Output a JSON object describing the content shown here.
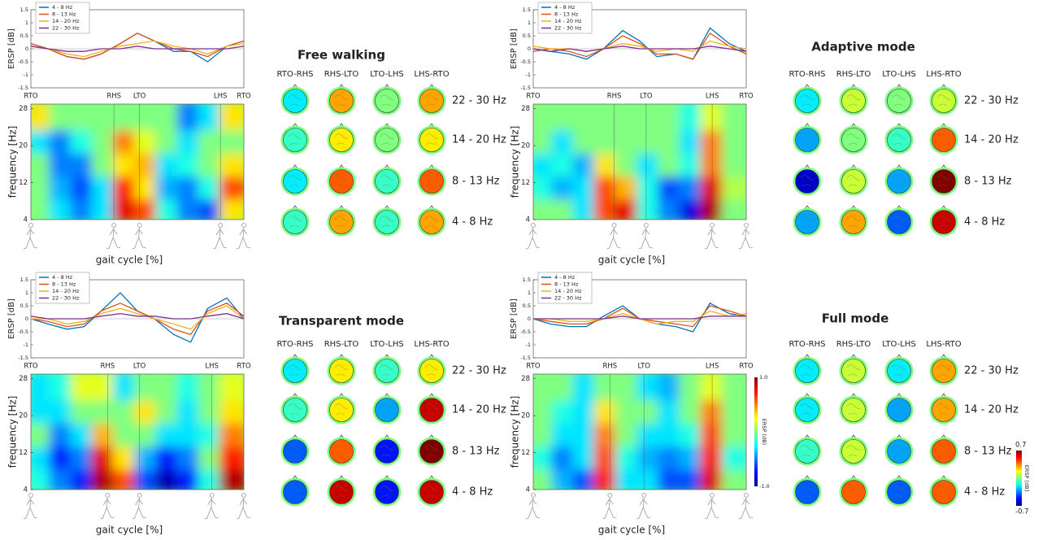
{
  "chart_data": [
    {
      "title": "Free walking",
      "line": {
        "type": "line",
        "ylabel": "ERSP [dB]",
        "xlim": [
          0,
          100
        ],
        "ylim": [
          -1.5,
          1.5
        ],
        "yticks": [
          -1.5,
          -1,
          -0.5,
          0,
          0.5,
          1,
          1.5
        ],
        "x": [
          0,
          8,
          17,
          25,
          33,
          42,
          50,
          58,
          67,
          75,
          83,
          92,
          100
        ],
        "events": [
          {
            "label": "RTO",
            "x": 0
          },
          {
            "label": "RHS",
            "x": 39
          },
          {
            "label": "LTO",
            "x": 51
          },
          {
            "label": "LHS",
            "x": 89
          },
          {
            "label": "RTO",
            "x": 100
          }
        ],
        "series": [
          {
            "name": "4 - 8 Hz",
            "color": "#0072bd",
            "values": [
              0.2,
              0,
              -0.3,
              -0.4,
              -0.2,
              0.2,
              0.6,
              0.3,
              -0.1,
              -0.1,
              -0.5,
              0.1,
              0.3
            ]
          },
          {
            "name": "8 - 13 Hz",
            "color": "#d95319",
            "values": [
              0.2,
              0,
              -0.3,
              -0.4,
              -0.2,
              0.2,
              0.6,
              0.3,
              0,
              -0.1,
              -0.3,
              0.1,
              0.3
            ]
          },
          {
            "name": "14 - 20 Hz",
            "color": "#edb120",
            "values": [
              0.1,
              0,
              -0.2,
              -0.3,
              -0.1,
              0.1,
              0.2,
              0.3,
              0.1,
              0,
              -0.2,
              0.1,
              0.2
            ]
          },
          {
            "name": "22 - 30 Hz",
            "color": "#7e2f8e",
            "values": [
              0.1,
              0,
              -0.1,
              -0.1,
              0,
              0,
              0.1,
              0,
              0,
              0,
              0,
              0,
              0.1
            ]
          }
        ]
      },
      "heatmap": {
        "type": "heatmap",
        "xlabel": "gait cycle [%]",
        "ylabel": "frequency [Hz]",
        "xlim": [
          0,
          100
        ],
        "ylim": [
          4,
          29
        ],
        "yticks": [
          4,
          12,
          20,
          28
        ],
        "clim": [
          -1,
          1
        ],
        "x": [
          5,
          15,
          25,
          35,
          45,
          55,
          65,
          75,
          85,
          95
        ],
        "y": [
          6.5,
          11.5,
          16.5,
          21.5,
          26.5
        ],
        "values": [
          [
            0,
            -0.3,
            -0.5,
            -0.3,
            0.8,
            0.6,
            -0.2,
            -0.5,
            -0.6,
            0.3
          ],
          [
            0,
            -0.4,
            -0.6,
            -0.3,
            0.7,
            0.3,
            -0.4,
            -0.5,
            -0.2,
            0.6
          ],
          [
            0,
            -0.5,
            -0.5,
            0,
            0.3,
            0.4,
            -0.3,
            -0.2,
            0,
            0.3
          ],
          [
            -0.3,
            -0.5,
            -0.2,
            0,
            0.5,
            0.2,
            0,
            -0.3,
            0,
            0
          ],
          [
            0.3,
            0,
            0,
            0,
            0,
            0,
            0,
            -0.5,
            -0.3,
            0.3
          ]
        ]
      },
      "topomap": {
        "type": "topomap",
        "clim": [
          -0.7,
          0.7
        ],
        "columns": [
          "RTO-RHS",
          "RHS-LTO",
          "LTO-LHS",
          "LHS-RTO"
        ],
        "rows": [
          "22 - 30 Hz",
          "14 - 20 Hz",
          "8 - 13 Hz",
          "4 - 8 Hz"
        ],
        "values": [
          [
            -0.2,
            0.3,
            0,
            0.3
          ],
          [
            -0.1,
            0.2,
            0,
            0.2
          ],
          [
            -0.2,
            0.4,
            -0.1,
            0.4
          ],
          [
            -0.1,
            0.3,
            -0.1,
            0.3
          ]
        ]
      }
    },
    {
      "title": "Adaptive mode",
      "line": {
        "type": "line",
        "ylabel": "ERSP [dB]",
        "xlim": [
          0,
          100
        ],
        "ylim": [
          -1.5,
          1.5
        ],
        "yticks": [
          -1.5,
          -1,
          -0.5,
          0,
          0.5,
          1,
          1.5
        ],
        "x": [
          0,
          8,
          17,
          25,
          33,
          42,
          50,
          58,
          67,
          75,
          83,
          92,
          100
        ],
        "events": [
          {
            "label": "RTO",
            "x": 0
          },
          {
            "label": "RHS",
            "x": 38
          },
          {
            "label": "LTO",
            "x": 53
          },
          {
            "label": "LHS",
            "x": 84
          },
          {
            "label": "RTO",
            "x": 100
          }
        ],
        "series": [
          {
            "name": "4 - 8 Hz",
            "color": "#0072bd",
            "values": [
              0,
              -0.1,
              -0.2,
              -0.4,
              0,
              0.7,
              0.3,
              -0.3,
              -0.2,
              -0.4,
              0.8,
              0.2,
              -0.1
            ]
          },
          {
            "name": "8 - 13 Hz",
            "color": "#d95319",
            "values": [
              -0.1,
              0,
              -0.1,
              -0.3,
              0,
              0.5,
              0.2,
              -0.2,
              -0.2,
              -0.4,
              0.6,
              0.1,
              -0.2
            ]
          },
          {
            "name": "14 - 20 Hz",
            "color": "#edb120",
            "values": [
              0.1,
              0,
              0,
              -0.1,
              0,
              0.2,
              0.1,
              -0.1,
              0,
              -0.1,
              0.3,
              0.1,
              0
            ]
          },
          {
            "name": "22 - 30 Hz",
            "color": "#7e2f8e",
            "values": [
              0,
              -0.1,
              0,
              -0.1,
              0,
              0.1,
              0,
              0,
              0,
              0,
              0.1,
              0,
              -0.1
            ]
          }
        ]
      },
      "heatmap": {
        "type": "heatmap",
        "xlabel": "gait cycle [%]",
        "ylabel": "frequency [Hz]",
        "xlim": [
          0,
          100
        ],
        "ylim": [
          4,
          29
        ],
        "yticks": [
          4,
          12,
          20,
          28
        ],
        "clim": [
          -1,
          1
        ],
        "x": [
          5,
          15,
          25,
          35,
          45,
          55,
          65,
          75,
          85,
          95
        ],
        "y": [
          6.5,
          11.5,
          16.5,
          21.5,
          26.5
        ],
        "values": [
          [
            0,
            0,
            -0.3,
            0.6,
            0.8,
            -0.2,
            -0.5,
            -0.8,
            0.9,
            0
          ],
          [
            -0.2,
            -0.4,
            -0.3,
            0.6,
            0.4,
            -0.2,
            -0.6,
            -0.5,
            0.8,
            0.1
          ],
          [
            -0.3,
            -0.2,
            -0.4,
            0.3,
            0,
            -0.3,
            0,
            -0.2,
            0.5,
            0
          ],
          [
            0,
            -0.3,
            0,
            0,
            0,
            0,
            0,
            -0.3,
            0.5,
            0
          ],
          [
            0,
            0,
            0,
            0,
            0,
            0,
            0,
            -0.2,
            0.2,
            0
          ]
        ]
      },
      "topomap": {
        "type": "topomap",
        "clim": [
          -0.7,
          0.7
        ],
        "columns": [
          "RTO-RHS",
          "RHS-LTO",
          "LTO-LHS",
          "LHS-RTO"
        ],
        "rows": [
          "22 - 30 Hz",
          "14 - 20 Hz",
          "8 - 13 Hz",
          "4 - 8 Hz"
        ],
        "values": [
          [
            -0.2,
            0.1,
            0,
            0.1
          ],
          [
            -0.3,
            0,
            -0.1,
            0.4
          ],
          [
            -0.6,
            0.1,
            -0.3,
            0.7
          ],
          [
            -0.3,
            0.3,
            -0.4,
            0.6
          ]
        ]
      }
    },
    {
      "title": "Transparent mode",
      "line": {
        "type": "line",
        "ylabel": "ERSP [dB]",
        "xlim": [
          0,
          100
        ],
        "ylim": [
          -1.5,
          1.5
        ],
        "yticks": [
          -1.5,
          -1,
          -0.5,
          0,
          0.5,
          1,
          1.5
        ],
        "x": [
          0,
          8,
          17,
          25,
          33,
          42,
          50,
          58,
          67,
          75,
          83,
          92,
          100
        ],
        "events": [
          {
            "label": "RTO",
            "x": 0
          },
          {
            "label": "RHS",
            "x": 36
          },
          {
            "label": "LTO",
            "x": 51
          },
          {
            "label": "LHS",
            "x": 85
          },
          {
            "label": "RTO",
            "x": 100
          }
        ],
        "series": [
          {
            "name": "4 - 8 Hz",
            "color": "#0072bd",
            "values": [
              0,
              -0.2,
              -0.4,
              -0.3,
              0.3,
              1,
              0.3,
              0,
              -0.6,
              -0.9,
              0.4,
              0.8,
              0
            ]
          },
          {
            "name": "8 - 13 Hz",
            "color": "#d95319",
            "values": [
              0,
              -0.1,
              -0.3,
              -0.2,
              0.3,
              0.6,
              0.3,
              0,
              -0.4,
              -0.6,
              0.3,
              0.6,
              0.1
            ]
          },
          {
            "name": "14 - 20 Hz",
            "color": "#edb120",
            "values": [
              0,
              0,
              -0.2,
              -0.1,
              0.2,
              0.4,
              0.2,
              0,
              -0.2,
              -0.4,
              0.2,
              0.5,
              0
            ]
          },
          {
            "name": "22 - 30 Hz",
            "color": "#7e2f8e",
            "values": [
              0.1,
              0,
              0,
              0,
              0.1,
              0.2,
              0.1,
              0.1,
              0,
              0,
              0.1,
              0.2,
              0
            ]
          }
        ]
      },
      "heatmap": {
        "type": "heatmap",
        "xlabel": "gait cycle [%]",
        "ylabel": "frequency [Hz]",
        "xlim": [
          0,
          100
        ],
        "ylim": [
          4,
          29
        ],
        "yticks": [
          4,
          12,
          20,
          28
        ],
        "clim": [
          -1,
          1
        ],
        "x": [
          5,
          15,
          25,
          35,
          45,
          55,
          65,
          75,
          85,
          95
        ],
        "y": [
          6.5,
          11.5,
          16.5,
          21.5,
          26.5
        ],
        "values": [
          [
            -0.2,
            -0.5,
            -0.7,
            0.9,
            0.6,
            -0.6,
            -0.9,
            -0.7,
            -0.2,
            0.9
          ],
          [
            -0.3,
            -0.7,
            -0.5,
            0.8,
            0.3,
            -0.4,
            -0.7,
            -0.5,
            0,
            0.7
          ],
          [
            0,
            -0.5,
            -0.3,
            0.4,
            0,
            0,
            -0.3,
            -0.3,
            -0.2,
            0.5
          ],
          [
            -0.3,
            -0.3,
            0,
            0,
            0,
            0.3,
            0,
            -0.3,
            0,
            0.3
          ],
          [
            -0.3,
            -0.2,
            0.2,
            0.2,
            -0.3,
            0,
            0,
            -0.2,
            0,
            0.2
          ]
        ]
      },
      "topomap": {
        "type": "topomap",
        "clim": [
          -0.7,
          0.7
        ],
        "columns": [
          "RTO-RHS",
          "RHS-LTO",
          "LTO-LHS",
          "LHS-RTO"
        ],
        "rows": [
          "22 - 30 Hz",
          "14 - 20 Hz",
          "8 - 13 Hz",
          "4 - 8 Hz"
        ],
        "values": [
          [
            -0.2,
            0.2,
            -0.1,
            0.2
          ],
          [
            -0.1,
            0.2,
            -0.3,
            0.6
          ],
          [
            -0.4,
            0.4,
            -0.5,
            0.7
          ],
          [
            -0.4,
            0.6,
            -0.5,
            0.6
          ]
        ]
      }
    },
    {
      "title": "Full mode",
      "line": {
        "type": "line",
        "ylabel": "ERSP [dB]",
        "xlim": [
          0,
          100
        ],
        "ylim": [
          -1.5,
          1.5
        ],
        "yticks": [
          -1.5,
          -1,
          -0.5,
          0,
          0.5,
          1,
          1.5
        ],
        "x": [
          0,
          8,
          17,
          25,
          33,
          42,
          50,
          58,
          67,
          75,
          83,
          92,
          100
        ],
        "events": [
          {
            "label": "RTO",
            "x": 0
          },
          {
            "label": "RHS",
            "x": 36
          },
          {
            "label": "LTO",
            "x": 52
          },
          {
            "label": "LHS",
            "x": 84
          },
          {
            "label": "RTO",
            "x": 100
          }
        ],
        "series": [
          {
            "name": "4 - 8 Hz",
            "color": "#0072bd",
            "values": [
              0,
              -0.2,
              -0.3,
              -0.3,
              0.1,
              0.5,
              0,
              -0.2,
              -0.3,
              -0.5,
              0.6,
              0.2,
              0.1
            ]
          },
          {
            "name": "8 - 13 Hz",
            "color": "#d95319",
            "values": [
              0,
              -0.1,
              -0.2,
              -0.2,
              0,
              0.4,
              0,
              -0.1,
              -0.2,
              -0.3,
              0.5,
              0.3,
              0.1
            ]
          },
          {
            "name": "14 - 20 Hz",
            "color": "#edb120",
            "values": [
              0,
              0,
              -0.1,
              -0.1,
              0,
              0.2,
              0,
              -0.2,
              -0.1,
              -0.1,
              0.3,
              0.1,
              0.2
            ]
          },
          {
            "name": "22 - 30 Hz",
            "color": "#7e2f8e",
            "values": [
              0,
              0,
              0,
              0,
              0,
              0.1,
              0,
              0,
              0,
              0,
              0.1,
              0.1,
              0.1
            ]
          }
        ]
      },
      "heatmap": {
        "type": "heatmap",
        "xlabel": "gait cycle [%]",
        "ylabel": "frequency [Hz]",
        "xlim": [
          0,
          100
        ],
        "ylim": [
          4,
          29
        ],
        "yticks": [
          4,
          12,
          20,
          28
        ],
        "clim": [
          -1,
          1
        ],
        "x": [
          5,
          15,
          25,
          35,
          45,
          55,
          65,
          75,
          85,
          95
        ],
        "y": [
          6.5,
          11.5,
          16.5,
          21.5,
          26.5
        ],
        "values": [
          [
            0,
            -0.4,
            -0.6,
            0.7,
            -0.3,
            -0.3,
            -0.6,
            -0.6,
            0.8,
            0
          ],
          [
            -0.2,
            -0.5,
            -0.3,
            0.6,
            -0.2,
            -0.4,
            -0.5,
            -0.4,
            0.7,
            -0.2
          ],
          [
            0,
            -0.3,
            -0.3,
            0.5,
            0,
            -0.3,
            -0.3,
            -0.2,
            0.6,
            0
          ],
          [
            0,
            -0.2,
            -0.3,
            0.3,
            0,
            0,
            -0.3,
            0,
            0.5,
            0
          ],
          [
            0,
            0,
            -0.3,
            0,
            0,
            -0.3,
            -0.4,
            0,
            0.2,
            0
          ]
        ],
        "colorbar": {
          "label": "ERSP (dB)",
          "ticks": [
            {
              "value": 1,
              "label": "1.0"
            },
            {
              "value": -1,
              "label": "-1.0"
            }
          ]
        }
      },
      "topomap": {
        "type": "topomap",
        "clim": [
          -0.7,
          0.7
        ],
        "columns": [
          "RTO-RHS",
          "RHS-LTO",
          "LTO-LHS",
          "LHS-RTO"
        ],
        "rows": [
          "22 - 30 Hz",
          "14 - 20 Hz",
          "8 - 13 Hz",
          "4 - 8 Hz"
        ],
        "values": [
          [
            -0.2,
            0.1,
            -0.2,
            0.3
          ],
          [
            -0.2,
            0.1,
            -0.3,
            0.3
          ],
          [
            -0.1,
            0.1,
            -0.3,
            0.4
          ],
          [
            -0.4,
            0.4,
            -0.4,
            0.4
          ]
        ],
        "colorbar": {
          "label": "ERSP [dB]",
          "ticks": [
            0.7,
            -0.7
          ]
        }
      }
    }
  ]
}
